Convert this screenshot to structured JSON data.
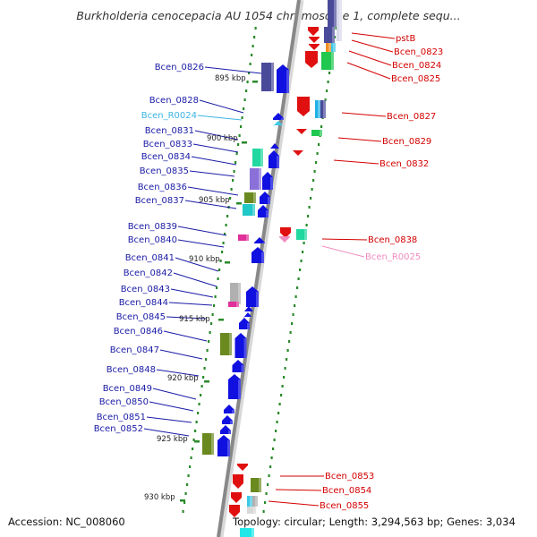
{
  "title": "Burkholderia cenocepacia AU 1054 chromosome 1, complete sequ...",
  "footer": {
    "accession": "Accession: NC_008060",
    "topology": "Topology: circular; Length: 3,294,563 bp; Genes: 3,034"
  },
  "kbp_ticks": [
    "895 kbp",
    "900 kbp",
    "905 kbp",
    "910 kbp",
    "915 kbp",
    "920 kbp",
    "925 kbp",
    "930 kbp"
  ],
  "left_labels": [
    {
      "text": "Bcen_0826",
      "color": "#1a1aa6"
    },
    {
      "text": "Bcen_0828",
      "color": "#1a1aa6"
    },
    {
      "text": "Bcen_R0024",
      "color": "#3cb4e6"
    },
    {
      "text": "Bcen_0831",
      "color": "#1a1aa6"
    },
    {
      "text": "Bcen_0833",
      "color": "#1a1aa6"
    },
    {
      "text": "Bcen_0834",
      "color": "#1a1aa6"
    },
    {
      "text": "Bcen_0835",
      "color": "#1a1aa6"
    },
    {
      "text": "Bcen_0836",
      "color": "#1a1aa6"
    },
    {
      "text": "Bcen_0837",
      "color": "#1a1aa6"
    },
    {
      "text": "Bcen_0839",
      "color": "#1a1aa6"
    },
    {
      "text": "Bcen_0840",
      "color": "#1a1aa6"
    },
    {
      "text": "Bcen_0841",
      "color": "#1a1aa6"
    },
    {
      "text": "Bcen_0842",
      "color": "#1a1aa6"
    },
    {
      "text": "Bcen_0843",
      "color": "#1a1aa6"
    },
    {
      "text": "Bcen_0844",
      "color": "#1a1aa6"
    },
    {
      "text": "Bcen_0845",
      "color": "#1a1aa6"
    },
    {
      "text": "Bcen_0846",
      "color": "#1a1aa6"
    },
    {
      "text": "Bcen_0847",
      "color": "#1a1aa6"
    },
    {
      "text": "Bcen_0848",
      "color": "#1a1aa6"
    },
    {
      "text": "Bcen_0849",
      "color": "#1a1aa6"
    },
    {
      "text": "Bcen_0850",
      "color": "#1a1aa6"
    },
    {
      "text": "Bcen_0851",
      "color": "#1a1aa6"
    },
    {
      "text": "Bcen_0852",
      "color": "#1a1aa6"
    }
  ],
  "right_labels": [
    {
      "text": "pstB",
      "color": "#d40000"
    },
    {
      "text": "Bcen_0823",
      "color": "#d40000"
    },
    {
      "text": "Bcen_0824",
      "color": "#d40000"
    },
    {
      "text": "Bcen_0825",
      "color": "#d40000"
    },
    {
      "text": "Bcen_0827",
      "color": "#d40000"
    },
    {
      "text": "Bcen_0829",
      "color": "#d40000"
    },
    {
      "text": "Bcen_0832",
      "color": "#d40000"
    },
    {
      "text": "Bcen_0838",
      "color": "#d40000"
    },
    {
      "text": "Bcen_R0025",
      "color": "#f08cc0"
    },
    {
      "text": "Bcen_0853",
      "color": "#d40000"
    },
    {
      "text": "Bcen_0854",
      "color": "#d40000"
    },
    {
      "text": "Bcen_0855",
      "color": "#d40000"
    }
  ],
  "colors": {
    "forward_strand": "#1010e0",
    "reverse_strand": "#e01010",
    "backbone": "#888888",
    "tick_dots": "#2a8a2a"
  }
}
